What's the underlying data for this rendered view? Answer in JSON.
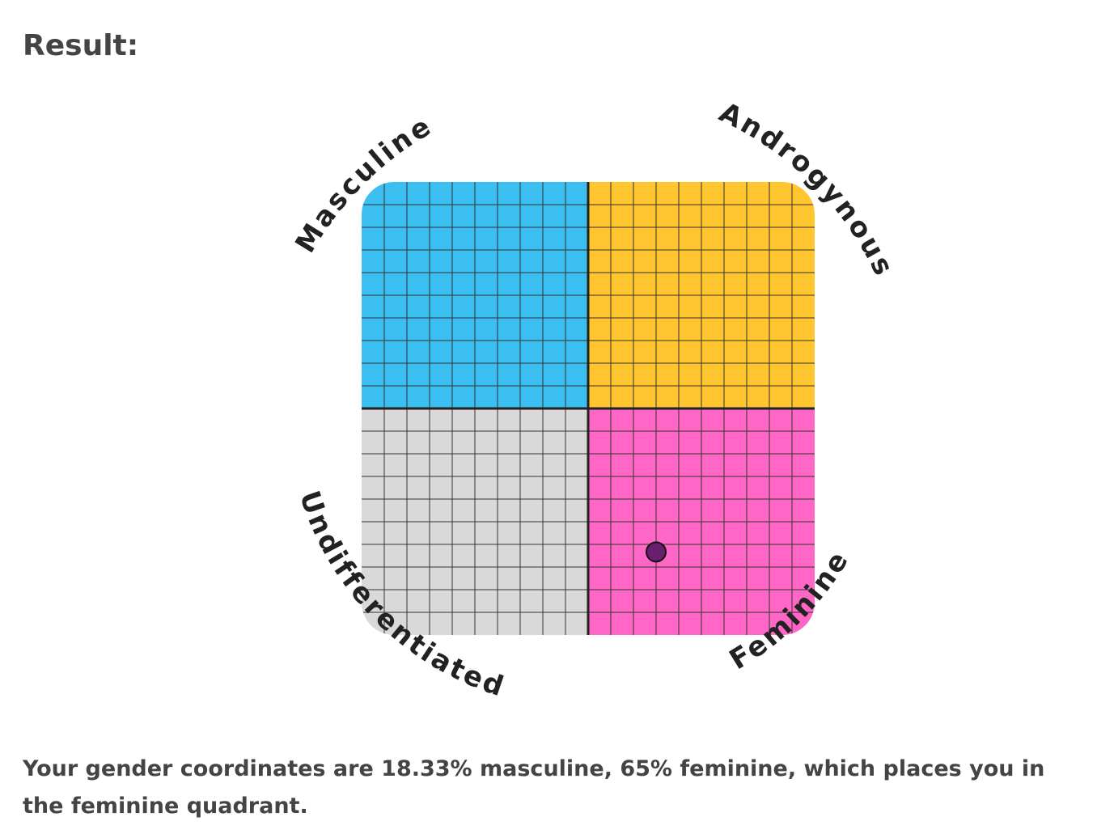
{
  "header": {
    "title": "Result:"
  },
  "chart_data": {
    "type": "scatter",
    "quadrant_labels": [
      "Masculine",
      "Androgynous",
      "Undifferentiated",
      "Feminine"
    ],
    "quadrant_colors": [
      "#3bbff0",
      "#ffc630",
      "#d9d9d9",
      "#ff66c6"
    ],
    "x": [
      65
    ],
    "y": [
      18.33
    ],
    "color": "#6a1f6e",
    "xlim": [
      0,
      100
    ],
    "ylim": [
      0,
      100
    ]
  },
  "result": {
    "text": "Your gender coordinates are 18.33% masculine, 65% feminine, which places you in the feminine quadrant."
  }
}
